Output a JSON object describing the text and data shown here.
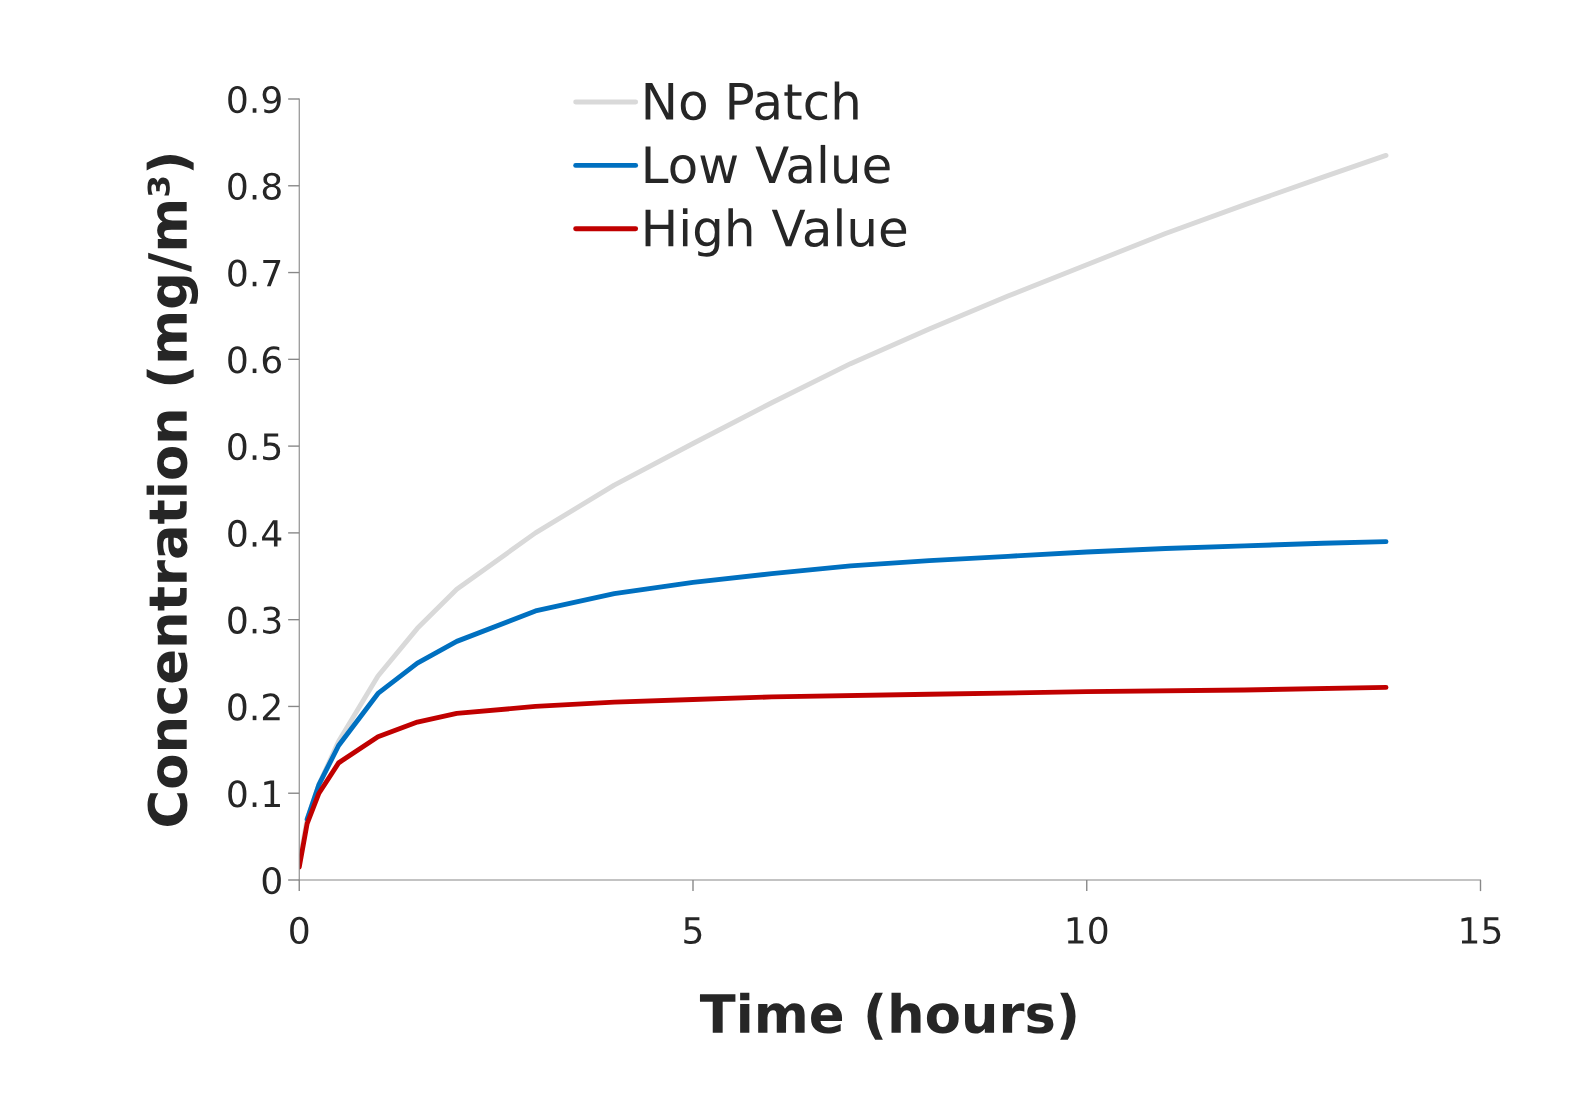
{
  "chart_data": {
    "type": "line",
    "xlabel": "Time (hours)",
    "ylabel": "Concentration (mg/m³)",
    "xlim": [
      0,
      15
    ],
    "xticks": [
      0,
      5,
      10,
      15
    ],
    "ylim": [
      0,
      0.9
    ],
    "yticks": [
      0,
      0.1,
      0.2,
      0.3,
      0.4,
      0.5,
      0.6,
      0.7,
      0.8,
      0.9
    ],
    "grid": false,
    "legend": "top",
    "marker": "none",
    "line_style": "solid",
    "series": [
      {
        "name": "No Patch",
        "color": "#d9d9d9",
        "x": [
          0,
          0.1,
          0.25,
          0.5,
          1,
          1.5,
          2,
          3,
          4,
          5,
          6,
          7,
          8,
          9,
          10,
          11,
          12,
          13,
          13.8
        ],
        "values": [
          0.02,
          0.07,
          0.11,
          0.16,
          0.235,
          0.29,
          0.335,
          0.4,
          0.455,
          0.503,
          0.55,
          0.595,
          0.635,
          0.673,
          0.709,
          0.745,
          0.778,
          0.81,
          0.835
        ]
      },
      {
        "name": "Low Value",
        "color": "#0070c0",
        "x": [
          0.1,
          0.25,
          0.5,
          1,
          1.5,
          2,
          3,
          4,
          5,
          6,
          7,
          8,
          9,
          10,
          11,
          12,
          13,
          13.8
        ],
        "values": [
          0.07,
          0.11,
          0.155,
          0.215,
          0.25,
          0.275,
          0.31,
          0.33,
          0.343,
          0.353,
          0.362,
          0.368,
          0.373,
          0.378,
          0.382,
          0.385,
          0.388,
          0.39
        ]
      },
      {
        "name": "High Value",
        "color": "#c00000",
        "x": [
          0,
          0.1,
          0.25,
          0.5,
          1,
          1.5,
          2,
          3,
          4,
          5,
          6,
          8,
          10,
          12,
          13.8
        ],
        "values": [
          0.015,
          0.065,
          0.1,
          0.135,
          0.165,
          0.182,
          0.192,
          0.2,
          0.205,
          0.208,
          0.211,
          0.214,
          0.217,
          0.219,
          0.222
        ]
      }
    ]
  }
}
